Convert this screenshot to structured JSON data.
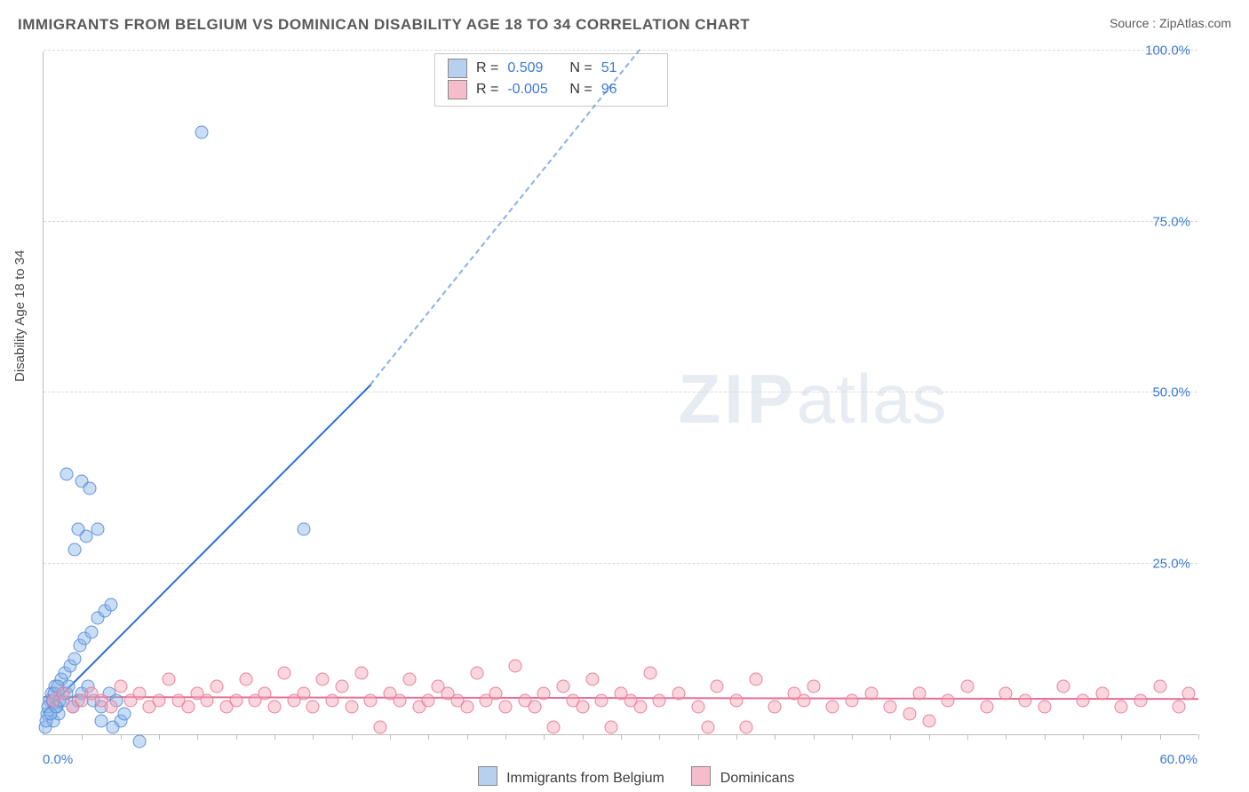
{
  "title": "IMMIGRANTS FROM BELGIUM VS DOMINICAN DISABILITY AGE 18 TO 34 CORRELATION CHART",
  "source": "Source : ZipAtlas.com",
  "ylabel": "Disability Age 18 to 34",
  "watermark_a": "ZIP",
  "watermark_b": "atlas",
  "chart": {
    "type": "scatter",
    "xlim": [
      0,
      60
    ],
    "ylim": [
      0,
      100
    ],
    "ytick_step": 25,
    "ytick_labels": [
      "25.0%",
      "50.0%",
      "75.0%",
      "100.0%"
    ],
    "xtick_labels": [
      "0.0%",
      "60.0%"
    ],
    "x_minor_ticks": [
      2,
      4,
      6,
      8,
      10,
      12,
      14,
      16,
      18,
      20,
      22,
      24,
      26,
      28,
      30,
      32,
      34,
      36,
      38,
      40,
      42,
      44,
      46,
      48,
      50,
      52,
      54,
      56,
      58,
      60
    ],
    "background_color": "#ffffff",
    "grid_color": "#d9d9d9",
    "axis_color": "#bcbcbc",
    "tick_label_color": "#3a7bd5",
    "tick_label_fontsize": 15,
    "ylabel_fontsize": 15,
    "title_fontsize": 17,
    "title_color": "#58595b",
    "marker_size": 15,
    "series": [
      {
        "name": "Immigrants from Belgium",
        "color_fill": "rgba(135,180,232,0.45)",
        "color_stroke": "rgba(86,141,214,0.9)",
        "legend_swatch": "#b7d0f0",
        "R": "0.509",
        "N": "51",
        "trend_color": "#2b6fd6",
        "trend": {
          "x1": 0,
          "y1": 3,
          "x2_solid": 17,
          "y2_solid": 51,
          "x2_dash": 31,
          "y2_dash": 100
        },
        "points": [
          {
            "x": 0.2,
            "y": 3
          },
          {
            "x": 0.3,
            "y": 5
          },
          {
            "x": 0.4,
            "y": 6
          },
          {
            "x": 0.5,
            "y": 2
          },
          {
            "x": 0.6,
            "y": 7
          },
          {
            "x": 0.7,
            "y": 4
          },
          {
            "x": 0.8,
            "y": 3
          },
          {
            "x": 0.9,
            "y": 8
          },
          {
            "x": 1.0,
            "y": 5
          },
          {
            "x": 1.1,
            "y": 9
          },
          {
            "x": 1.2,
            "y": 6
          },
          {
            "x": 1.3,
            "y": 7
          },
          {
            "x": 1.4,
            "y": 10
          },
          {
            "x": 1.5,
            "y": 4
          },
          {
            "x": 1.6,
            "y": 11
          },
          {
            "x": 1.8,
            "y": 5
          },
          {
            "x": 1.9,
            "y": 13
          },
          {
            "x": 2.0,
            "y": 6
          },
          {
            "x": 2.1,
            "y": 14
          },
          {
            "x": 2.3,
            "y": 7
          },
          {
            "x": 2.5,
            "y": 15
          },
          {
            "x": 2.6,
            "y": 5
          },
          {
            "x": 2.8,
            "y": 17
          },
          {
            "x": 3.0,
            "y": 4
          },
          {
            "x": 3.2,
            "y": 18
          },
          {
            "x": 3.4,
            "y": 6
          },
          {
            "x": 3.5,
            "y": 19
          },
          {
            "x": 3.8,
            "y": 5
          },
          {
            "x": 4.0,
            "y": 2
          },
          {
            "x": 4.2,
            "y": 3
          },
          {
            "x": 1.2,
            "y": 38
          },
          {
            "x": 1.6,
            "y": 27
          },
          {
            "x": 2.0,
            "y": 37
          },
          {
            "x": 2.2,
            "y": 29
          },
          {
            "x": 2.4,
            "y": 36
          },
          {
            "x": 2.8,
            "y": 30
          },
          {
            "x": 1.8,
            "y": 30
          },
          {
            "x": 3.0,
            "y": 2
          },
          {
            "x": 3.6,
            "y": 1
          },
          {
            "x": 5.0,
            "y": -1
          },
          {
            "x": 13.5,
            "y": 30
          },
          {
            "x": 8.2,
            "y": 88
          },
          {
            "x": 0.1,
            "y": 1
          },
          {
            "x": 0.15,
            "y": 2
          },
          {
            "x": 0.25,
            "y": 4
          },
          {
            "x": 0.35,
            "y": 3
          },
          {
            "x": 0.45,
            "y": 5
          },
          {
            "x": 0.55,
            "y": 6
          },
          {
            "x": 0.65,
            "y": 4
          },
          {
            "x": 0.75,
            "y": 7
          },
          {
            "x": 0.85,
            "y": 5
          }
        ]
      },
      {
        "name": "Dominicans",
        "color_fill": "rgba(244,164,185,0.45)",
        "color_stroke": "rgba(232,120,150,0.9)",
        "legend_swatch": "#f6bccb",
        "R": "-0.005",
        "N": "96",
        "trend_color": "#e46f95",
        "trend": {
          "x1": 0,
          "y1": 5.3,
          "x2_solid": 60,
          "y2_solid": 5.0
        },
        "points": [
          {
            "x": 0.5,
            "y": 5
          },
          {
            "x": 1,
            "y": 6
          },
          {
            "x": 1.5,
            "y": 4
          },
          {
            "x": 2,
            "y": 5
          },
          {
            "x": 2.5,
            "y": 6
          },
          {
            "x": 3,
            "y": 5
          },
          {
            "x": 3.5,
            "y": 4
          },
          {
            "x": 4,
            "y": 7
          },
          {
            "x": 4.5,
            "y": 5
          },
          {
            "x": 5,
            "y": 6
          },
          {
            "x": 5.5,
            "y": 4
          },
          {
            "x": 6,
            "y": 5
          },
          {
            "x": 6.5,
            "y": 8
          },
          {
            "x": 7,
            "y": 5
          },
          {
            "x": 7.5,
            "y": 4
          },
          {
            "x": 8,
            "y": 6
          },
          {
            "x": 8.5,
            "y": 5
          },
          {
            "x": 9,
            "y": 7
          },
          {
            "x": 9.5,
            "y": 4
          },
          {
            "x": 10,
            "y": 5
          },
          {
            "x": 10.5,
            "y": 8
          },
          {
            "x": 11,
            "y": 5
          },
          {
            "x": 11.5,
            "y": 6
          },
          {
            "x": 12,
            "y": 4
          },
          {
            "x": 12.5,
            "y": 9
          },
          {
            "x": 13,
            "y": 5
          },
          {
            "x": 13.5,
            "y": 6
          },
          {
            "x": 14,
            "y": 4
          },
          {
            "x": 14.5,
            "y": 8
          },
          {
            "x": 15,
            "y": 5
          },
          {
            "x": 15.5,
            "y": 7
          },
          {
            "x": 16,
            "y": 4
          },
          {
            "x": 16.5,
            "y": 9
          },
          {
            "x": 17,
            "y": 5
          },
          {
            "x": 17.5,
            "y": 1
          },
          {
            "x": 18,
            "y": 6
          },
          {
            "x": 18.5,
            "y": 5
          },
          {
            "x": 19,
            "y": 8
          },
          {
            "x": 19.5,
            "y": 4
          },
          {
            "x": 20,
            "y": 5
          },
          {
            "x": 20.5,
            "y": 7
          },
          {
            "x": 21,
            "y": 6
          },
          {
            "x": 21.5,
            "y": 5
          },
          {
            "x": 22,
            "y": 4
          },
          {
            "x": 22.5,
            "y": 9
          },
          {
            "x": 23,
            "y": 5
          },
          {
            "x": 23.5,
            "y": 6
          },
          {
            "x": 24,
            "y": 4
          },
          {
            "x": 24.5,
            "y": 10
          },
          {
            "x": 25,
            "y": 5
          },
          {
            "x": 25.5,
            "y": 4
          },
          {
            "x": 26,
            "y": 6
          },
          {
            "x": 26.5,
            "y": 1
          },
          {
            "x": 27,
            "y": 7
          },
          {
            "x": 27.5,
            "y": 5
          },
          {
            "x": 28,
            "y": 4
          },
          {
            "x": 28.5,
            "y": 8
          },
          {
            "x": 29,
            "y": 5
          },
          {
            "x": 29.5,
            "y": 1
          },
          {
            "x": 30,
            "y": 6
          },
          {
            "x": 30.5,
            "y": 5
          },
          {
            "x": 31,
            "y": 4
          },
          {
            "x": 31.5,
            "y": 9
          },
          {
            "x": 32,
            "y": 5
          },
          {
            "x": 33,
            "y": 6
          },
          {
            "x": 34,
            "y": 4
          },
          {
            "x": 34.5,
            "y": 1
          },
          {
            "x": 35,
            "y": 7
          },
          {
            "x": 36,
            "y": 5
          },
          {
            "x": 36.5,
            "y": 1
          },
          {
            "x": 37,
            "y": 8
          },
          {
            "x": 38,
            "y": 4
          },
          {
            "x": 39,
            "y": 6
          },
          {
            "x": 39.5,
            "y": 5
          },
          {
            "x": 40,
            "y": 7
          },
          {
            "x": 41,
            "y": 4
          },
          {
            "x": 42,
            "y": 5
          },
          {
            "x": 43,
            "y": 6
          },
          {
            "x": 44,
            "y": 4
          },
          {
            "x": 45,
            "y": 3
          },
          {
            "x": 45.5,
            "y": 6
          },
          {
            "x": 46,
            "y": 2
          },
          {
            "x": 47,
            "y": 5
          },
          {
            "x": 48,
            "y": 7
          },
          {
            "x": 49,
            "y": 4
          },
          {
            "x": 50,
            "y": 6
          },
          {
            "x": 51,
            "y": 5
          },
          {
            "x": 52,
            "y": 4
          },
          {
            "x": 53,
            "y": 7
          },
          {
            "x": 54,
            "y": 5
          },
          {
            "x": 55,
            "y": 6
          },
          {
            "x": 56,
            "y": 4
          },
          {
            "x": 57,
            "y": 5
          },
          {
            "x": 58,
            "y": 7
          },
          {
            "x": 59,
            "y": 4
          },
          {
            "x": 59.5,
            "y": 6
          }
        ]
      }
    ]
  },
  "stat_box": {
    "r_label": "R =",
    "n_label": "N ="
  },
  "legend": {
    "series_a": "Immigrants from Belgium",
    "series_b": "Dominicans"
  }
}
